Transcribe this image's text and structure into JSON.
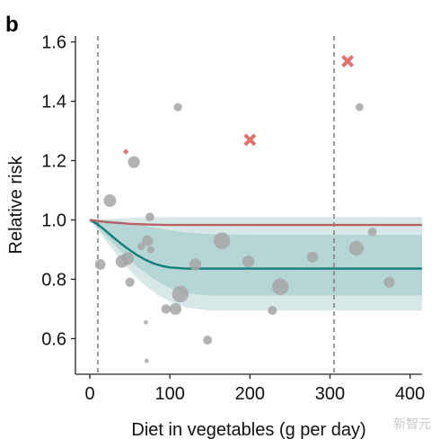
{
  "panel_label": "b",
  "watermark": "新智元",
  "chart_data": {
    "type": "scatter",
    "xlabel": "Diet in vegetables (g per day)",
    "ylabel": "Relative risk",
    "xlim": [
      -18,
      415
    ],
    "ylim": [
      0.48,
      1.62
    ],
    "x_ticks": [
      0,
      100,
      200,
      300,
      400
    ],
    "y_ticks": [
      0.6,
      0.8,
      1.0,
      1.2,
      1.4,
      1.6
    ],
    "x_tick_labels": [
      "0",
      "100",
      "200",
      "300",
      "400"
    ],
    "y_tick_labels": [
      "0.6",
      "0.8",
      "1.0",
      "1.2",
      "1.4",
      "1.6"
    ],
    "reference_lines_x": [
      10,
      305
    ],
    "colors": {
      "studies": "#a6a6a6",
      "outliers": "#e0716f",
      "teal_line": "#127f7a",
      "red_line": "#b86266",
      "band_outer": "#d8e8e8",
      "band_inner": "#b6d5d5",
      "ref_line": "#7a7a7a"
    },
    "series": [
      {
        "kind": "curve",
        "x": [
          0,
          10,
          20,
          30,
          40,
          50,
          60,
          70,
          80,
          90,
          100,
          120,
          150,
          200,
          300,
          415
        ],
        "y": [
          1.0,
          0.985,
          0.963,
          0.94,
          0.918,
          0.898,
          0.88,
          0.865,
          0.853,
          0.845,
          0.84,
          0.836,
          0.836,
          0.836,
          0.836,
          0.836
        ]
      },
      {
        "kind": "curve",
        "x": [
          0,
          20,
          50,
          80,
          100,
          150,
          200,
          300,
          415
        ],
        "y": [
          1.0,
          0.993,
          0.987,
          0.984,
          0.983,
          0.983,
          0.983,
          0.983,
          0.983
        ]
      },
      {
        "kind": "band",
        "x": [
          0,
          20,
          40,
          60,
          80,
          100,
          120,
          150,
          200,
          300,
          415
        ],
        "upper": [
          1.0,
          1.002,
          1.005,
          1.008,
          1.01,
          1.01,
          1.01,
          1.01,
          1.01,
          1.01,
          1.01
        ],
        "lower": [
          1.0,
          0.93,
          0.86,
          0.8,
          0.755,
          0.725,
          0.705,
          0.695,
          0.695,
          0.695,
          0.695
        ]
      },
      {
        "kind": "band",
        "x": [
          0,
          20,
          40,
          60,
          80,
          100,
          120,
          150,
          200,
          300,
          415
        ],
        "upper": [
          1.0,
          1.0,
          0.995,
          0.985,
          0.975,
          0.965,
          0.958,
          0.952,
          0.95,
          0.95,
          0.95
        ],
        "lower": [
          1.0,
          0.945,
          0.89,
          0.84,
          0.8,
          0.77,
          0.752,
          0.745,
          0.745,
          0.745,
          0.745
        ]
      },
      {
        "kind": "studies",
        "points": [
          {
            "x": 13,
            "y": 0.85,
            "w": 2.5
          },
          {
            "x": 25,
            "y": 1.065,
            "w": 3
          },
          {
            "x": 40,
            "y": 0.86,
            "w": 3
          },
          {
            "x": 47,
            "y": 0.87,
            "w": 3
          },
          {
            "x": 50,
            "y": 0.79,
            "w": 2.2
          },
          {
            "x": 55,
            "y": 1.195,
            "w": 2.8
          },
          {
            "x": 64,
            "y": 0.91,
            "w": 1.6
          },
          {
            "x": 70,
            "y": 0.655,
            "w": 0.9
          },
          {
            "x": 71,
            "y": 0.525,
            "w": 0.9
          },
          {
            "x": 72,
            "y": 0.93,
            "w": 2.6
          },
          {
            "x": 75,
            "y": 1.01,
            "w": 2
          },
          {
            "x": 76,
            "y": 0.9,
            "w": 1.6
          },
          {
            "x": 95,
            "y": 0.7,
            "w": 2.2
          },
          {
            "x": 107,
            "y": 0.7,
            "w": 2.8
          },
          {
            "x": 110,
            "y": 1.38,
            "w": 1.9
          },
          {
            "x": 113,
            "y": 0.75,
            "w": 4
          },
          {
            "x": 132,
            "y": 0.85,
            "w": 2.8
          },
          {
            "x": 147,
            "y": 0.595,
            "w": 2.1
          },
          {
            "x": 165,
            "y": 0.93,
            "w": 4
          },
          {
            "x": 198,
            "y": 0.86,
            "w": 2.8
          },
          {
            "x": 228,
            "y": 0.695,
            "w": 2.1
          },
          {
            "x": 238,
            "y": 0.775,
            "w": 4
          },
          {
            "x": 278,
            "y": 0.875,
            "w": 2.6
          },
          {
            "x": 333,
            "y": 0.905,
            "w": 3.5
          },
          {
            "x": 337,
            "y": 1.38,
            "w": 1.8
          },
          {
            "x": 353,
            "y": 0.96,
            "w": 2
          },
          {
            "x": 374,
            "y": 0.79,
            "w": 2.6
          }
        ]
      },
      {
        "kind": "outliers",
        "points": [
          {
            "x": 45,
            "y": 1.23,
            "w": 1
          },
          {
            "x": 200,
            "y": 1.27,
            "w": 2
          },
          {
            "x": 322,
            "y": 1.535,
            "w": 2
          }
        ]
      }
    ]
  }
}
